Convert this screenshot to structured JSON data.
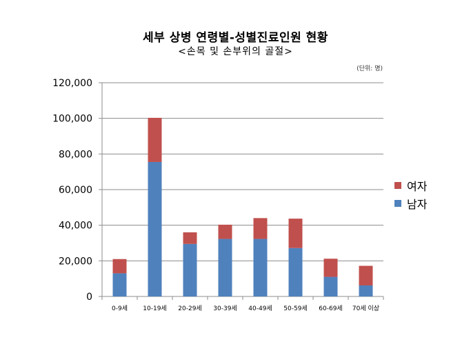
{
  "unit_note": "(단위: 명)",
  "colors": {
    "male": "#4f81bd",
    "female": "#c0504d",
    "grid": "#8c8c8c"
  },
  "chart_data": {
    "type": "bar",
    "stacked": true,
    "title": "세부 상병 연령별-성별진료인원 현황",
    "subtitle": "<손목 및 손부위의 골절>",
    "xlabel": "",
    "ylabel": "",
    "ylim": [
      0,
      120000
    ],
    "yticks": [
      "120,000",
      "100,000",
      "80,000",
      "60,000",
      "40,000",
      "20,000",
      "0"
    ],
    "categories": [
      "0-9세",
      "10-19세",
      "20-29세",
      "30-39세",
      "40-49세",
      "50-59세",
      "60-69세",
      "70세 이상"
    ],
    "series": [
      {
        "name": "남자",
        "values": [
          13000,
          75500,
          29500,
          32300,
          32300,
          27200,
          11000,
          6200
        ]
      },
      {
        "name": "여자",
        "values": [
          8000,
          24800,
          6500,
          8000,
          11700,
          16500,
          10200,
          11000
        ]
      }
    ],
    "legend": [
      "여자",
      "남자"
    ],
    "legend_position": "right",
    "grid": true
  }
}
